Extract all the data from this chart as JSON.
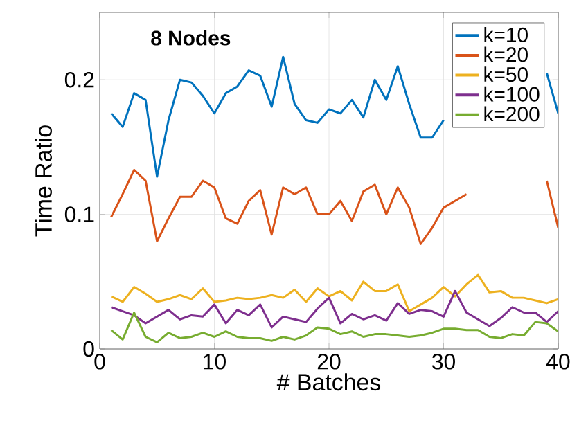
{
  "chart_data": {
    "type": "line",
    "title": "8 Nodes",
    "xlabel": "# Batches",
    "ylabel": "Time Ratio",
    "x": [
      1,
      2,
      3,
      4,
      5,
      6,
      7,
      8,
      9,
      10,
      11,
      12,
      13,
      14,
      15,
      16,
      17,
      18,
      19,
      20,
      21,
      22,
      23,
      24,
      25,
      26,
      27,
      28,
      29,
      30,
      31,
      32,
      33,
      34,
      35,
      36,
      37,
      38,
      39,
      40
    ],
    "xlim": [
      0,
      40
    ],
    "xticks": [
      0,
      10,
      20,
      30,
      40
    ],
    "ylim": [
      0,
      0.25
    ],
    "yticks": [
      0,
      0.1,
      0.2
    ],
    "grid": true,
    "legend": "top right",
    "line_style": "solid",
    "marker": "none",
    "series": [
      {
        "name": "k=10",
        "color": "#0072bd",
        "values": [
          0.175,
          0.165,
          0.19,
          0.185,
          0.128,
          0.17,
          0.2,
          0.198,
          0.188,
          0.175,
          0.19,
          0.195,
          0.207,
          0.203,
          0.18,
          0.217,
          0.182,
          0.17,
          0.168,
          0.178,
          0.175,
          0.185,
          0.172,
          0.2,
          0.185,
          0.21,
          0.182,
          0.157,
          0.157,
          0.17,
          null,
          null,
          null,
          null,
          null,
          null,
          null,
          null,
          0.205,
          0.175
        ]
      },
      {
        "name": "k=20",
        "color": "#d95319",
        "values": [
          0.098,
          0.115,
          0.133,
          0.125,
          0.08,
          0.097,
          0.113,
          0.113,
          0.125,
          0.12,
          0.097,
          0.093,
          0.11,
          0.118,
          0.085,
          0.12,
          0.115,
          0.12,
          0.1,
          0.1,
          0.11,
          0.095,
          0.117,
          0.122,
          0.1,
          0.12,
          0.105,
          0.078,
          0.09,
          0.105,
          0.11,
          0.115,
          null,
          null,
          null,
          null,
          null,
          null,
          0.125,
          0.09
        ]
      },
      {
        "name": "k=50",
        "color": "#edb120",
        "values": [
          0.039,
          0.035,
          0.046,
          0.041,
          0.035,
          0.037,
          0.04,
          0.037,
          0.045,
          0.035,
          0.036,
          0.038,
          0.037,
          0.038,
          0.04,
          0.038,
          0.044,
          0.035,
          0.045,
          0.039,
          0.043,
          0.036,
          0.05,
          0.043,
          0.043,
          0.048,
          0.028,
          0.033,
          0.038,
          0.046,
          0.039,
          0.048,
          0.055,
          0.042,
          0.043,
          0.038,
          0.038,
          0.036,
          0.034,
          0.037
        ]
      },
      {
        "name": "k=100",
        "color": "#7e2f8e",
        "values": [
          0.031,
          0.028,
          0.025,
          0.019,
          0.024,
          0.029,
          0.022,
          0.025,
          0.024,
          0.033,
          0.019,
          0.029,
          0.025,
          0.033,
          0.016,
          0.024,
          0.022,
          0.02,
          0.03,
          0.038,
          0.019,
          0.026,
          0.022,
          0.025,
          0.021,
          0.034,
          0.026,
          0.029,
          0.028,
          0.024,
          0.043,
          0.027,
          0.022,
          0.017,
          0.023,
          0.031,
          0.027,
          0.027,
          0.02,
          0.028
        ]
      },
      {
        "name": "k=200",
        "color": "#77ac30",
        "values": [
          0.014,
          0.007,
          0.027,
          0.009,
          0.005,
          0.012,
          0.008,
          0.009,
          0.012,
          0.009,
          0.013,
          0.009,
          0.008,
          0.008,
          0.006,
          0.009,
          0.007,
          0.01,
          0.016,
          0.015,
          0.011,
          0.013,
          0.009,
          0.011,
          0.011,
          0.01,
          0.009,
          0.01,
          0.012,
          0.015,
          0.015,
          0.014,
          0.014,
          0.009,
          0.008,
          0.011,
          0.01,
          0.02,
          0.019,
          0.013
        ]
      }
    ]
  }
}
